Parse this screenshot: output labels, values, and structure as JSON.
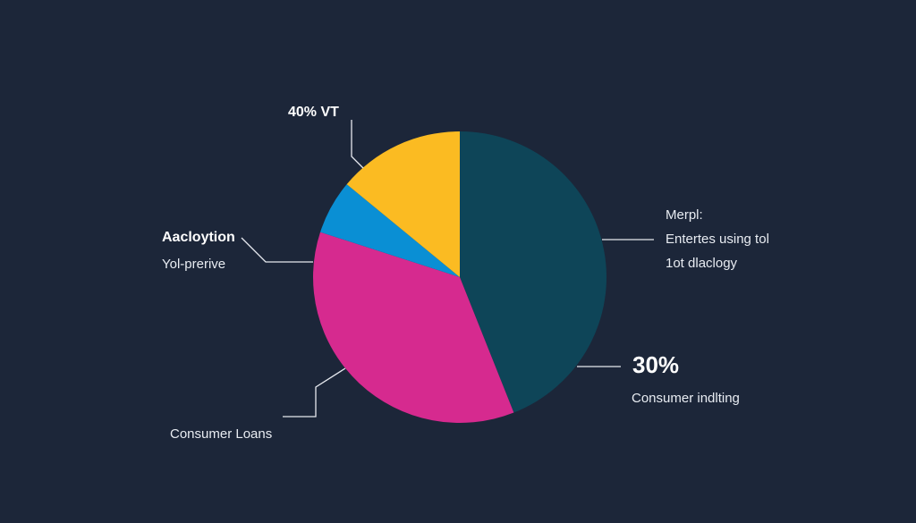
{
  "chart_data": {
    "type": "pie",
    "title": "",
    "slices": [
      {
        "label": "",
        "value": 44,
        "color": "#0e4558"
      },
      {
        "label": "",
        "value": 36,
        "color": "#d62a8f"
      },
      {
        "label": "",
        "value": 6,
        "color": "#0a8fd4"
      },
      {
        "label": "",
        "value": 14,
        "color": "#fbbb22"
      }
    ],
    "annotations": {
      "top_left": {
        "text": "40% VT"
      },
      "left": {
        "title": "Aacloytion",
        "subtitle": "Yol-prerive"
      },
      "bottom_left": {
        "text": "Consumer Loans"
      },
      "right": {
        "line1": "Merpl:",
        "line2": "Entertes using tol",
        "line3": "1ot dlaclogy"
      },
      "bottom_right": {
        "value": "30%",
        "text": "Consumer indlting"
      }
    }
  }
}
